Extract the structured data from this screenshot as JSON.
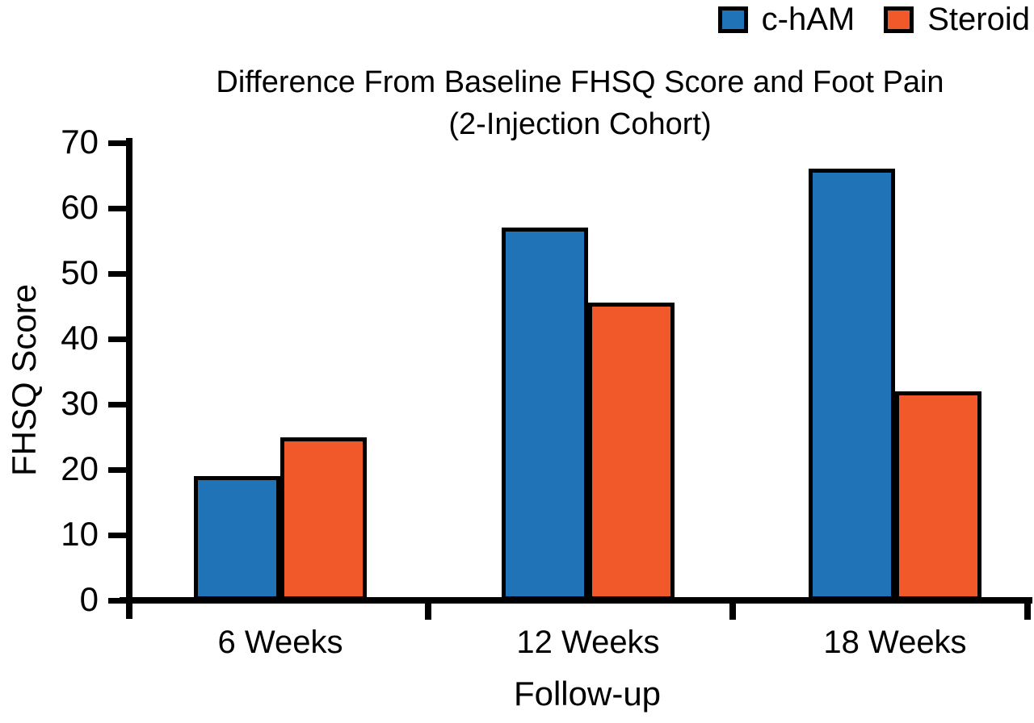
{
  "figure": {
    "background": "#ffffff"
  },
  "chart_data": {
    "type": "bar",
    "title_line1": "Difference From Baseline FHSQ Score and Foot Pain",
    "title_line2": "(2-Injection Cohort)",
    "xlabel": "Follow-up",
    "ylabel": "FHSQ Score",
    "categories": [
      "6 Weeks",
      "12 Weeks",
      "18 Weeks"
    ],
    "series": [
      {
        "name": "c-hAM",
        "color": "#2173B8",
        "values": [
          19,
          57,
          66
        ]
      },
      {
        "name": "Steroid",
        "color": "#F1592B",
        "values": [
          25,
          45.5,
          32
        ]
      }
    ],
    "ylim": [
      0,
      70
    ],
    "yticks": [
      0,
      10,
      20,
      30,
      40,
      50,
      60,
      70
    ],
    "grid": false,
    "legend_position": "top-right",
    "axis_color": "#000000",
    "bar_border_color": "#000000"
  }
}
